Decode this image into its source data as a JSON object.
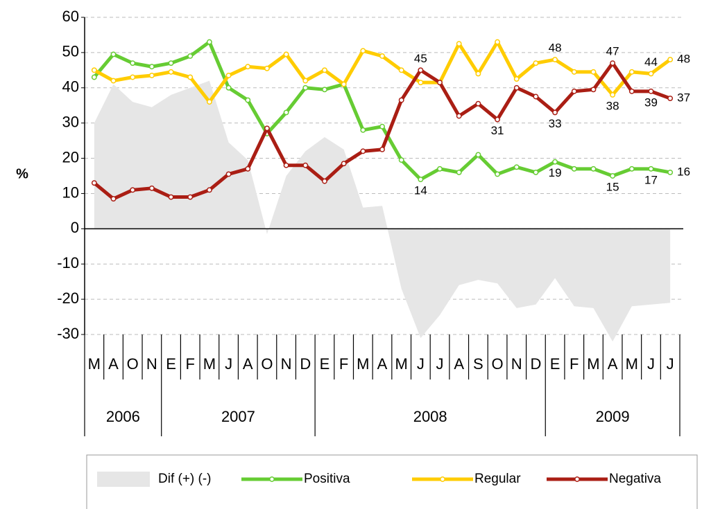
{
  "chart_data": {
    "type": "line",
    "y_label": "%",
    "ylim": [
      -30,
      60
    ],
    "yticks": [
      -30,
      -20,
      -10,
      0,
      10,
      20,
      30,
      40,
      50,
      60
    ],
    "grid": true,
    "legend": "bottom",
    "year_groups": [
      {
        "label": "2006",
        "categories": [
          "M",
          "A",
          "O",
          "N"
        ]
      },
      {
        "label": "2007",
        "categories": [
          "E",
          "F",
          "M",
          "J",
          "A",
          "O",
          "N",
          "D"
        ]
      },
      {
        "label": "2008",
        "categories": [
          "E",
          "F",
          "M",
          "A",
          "M",
          "J",
          "J",
          "A",
          "S",
          "O",
          "N",
          "D"
        ]
      },
      {
        "label": "2009",
        "categories": [
          "E",
          "F",
          "M",
          "A",
          "M",
          "J",
          "J"
        ]
      }
    ],
    "series": [
      {
        "name": "Dif (+) (-)",
        "type": "area",
        "color": "#e6e6e6",
        "values": [
          30,
          41,
          36,
          34.5,
          38,
          40,
          42,
          24.5,
          19.5,
          -1.5,
          15,
          22,
          26,
          22.5,
          6,
          6.5,
          -17,
          -31,
          -24.5,
          -16,
          -14.5,
          -15.5,
          -22.5,
          -21.5,
          -14,
          -22,
          -22.5,
          -32,
          -22,
          -21.5,
          -21
        ]
      },
      {
        "name": "Positiva",
        "type": "line",
        "color": "#66cc33",
        "values": [
          43,
          49.5,
          47,
          46,
          47,
          49,
          53,
          40,
          36.5,
          27,
          33,
          40,
          39.5,
          41,
          28,
          29,
          19.5,
          14,
          17,
          16,
          21,
          15.5,
          17.5,
          16,
          19,
          17,
          17,
          15,
          17,
          17,
          16
        ],
        "value_labels": [
          null,
          null,
          null,
          null,
          null,
          null,
          null,
          null,
          null,
          null,
          null,
          null,
          null,
          null,
          null,
          null,
          null,
          "14",
          null,
          null,
          null,
          null,
          null,
          null,
          "19",
          null,
          null,
          "15",
          null,
          "17",
          "16"
        ]
      },
      {
        "name": "Regular",
        "type": "line",
        "color": "#ffcc00",
        "values": [
          45,
          42,
          43,
          43.5,
          44.5,
          43,
          36,
          43.5,
          46,
          45.5,
          49.5,
          42,
          45,
          41,
          50.5,
          49,
          45,
          41.5,
          41.5,
          52.5,
          44,
          53,
          42.5,
          47,
          48,
          44.5,
          44.5,
          38,
          44.5,
          44,
          48
        ],
        "value_labels": [
          null,
          null,
          null,
          null,
          null,
          null,
          null,
          null,
          null,
          null,
          null,
          null,
          null,
          null,
          null,
          null,
          null,
          null,
          null,
          null,
          null,
          null,
          null,
          null,
          "48",
          null,
          null,
          "38",
          null,
          "44",
          "48"
        ]
      },
      {
        "name": "Negativa",
        "type": "line",
        "color": "#aa1e14",
        "values": [
          13,
          8.5,
          11,
          11.5,
          9,
          9,
          11,
          15.5,
          17,
          28.5,
          18,
          18,
          13.5,
          18.5,
          22,
          22.5,
          36.5,
          45,
          41.5,
          32,
          35.5,
          31,
          40,
          37.5,
          33,
          39,
          39.5,
          47,
          39,
          39,
          37
        ],
        "value_labels": [
          null,
          null,
          null,
          null,
          null,
          null,
          null,
          null,
          null,
          null,
          null,
          null,
          null,
          null,
          null,
          null,
          null,
          "45",
          null,
          null,
          null,
          "31",
          null,
          null,
          "33",
          null,
          null,
          "47",
          null,
          "39",
          "37"
        ]
      }
    ]
  }
}
